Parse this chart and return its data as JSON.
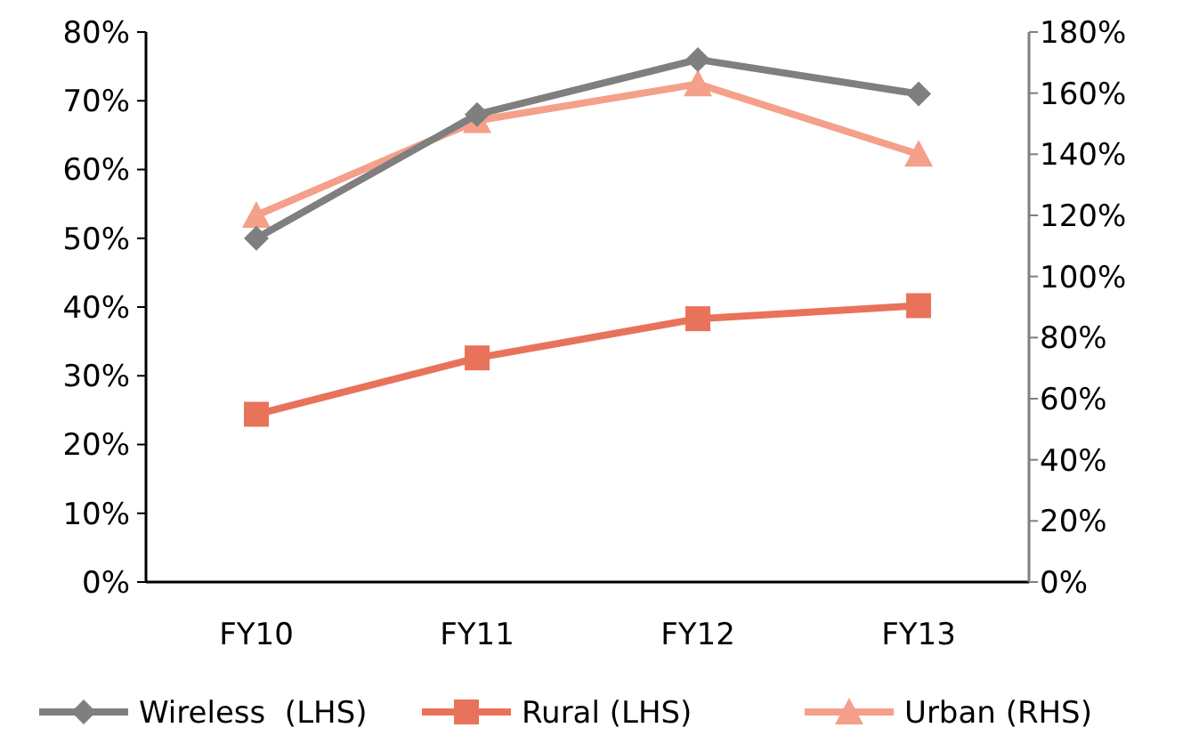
{
  "chart_data": {
    "type": "line",
    "categories": [
      "FY10",
      "FY11",
      "FY12",
      "FY13"
    ],
    "series": [
      {
        "name": "Wireless  (LHS)",
        "color": "#7f7f7f",
        "marker": "diamond",
        "values": [
          50,
          68,
          76,
          71
        ]
      },
      {
        "name": "Rural (LHS)",
        "color": "#e8735a",
        "marker": "square",
        "values": [
          24.4,
          32.6,
          38.3,
          40.2
        ]
      },
      {
        "name": "Urban (RHS)",
        "color": "#f4a08a",
        "marker": "triangle",
        "axis": "y2",
        "values": [
          120,
          151,
          163,
          140
        ]
      }
    ],
    "ylim": [
      0,
      80
    ],
    "yticks": [
      {
        "value": 0,
        "label": "0%"
      },
      {
        "value": 10,
        "label": "10%"
      },
      {
        "value": 20,
        "label": "20%"
      },
      {
        "value": 30,
        "label": "30%"
      },
      {
        "value": 40,
        "label": "40%"
      },
      {
        "value": 50,
        "label": "50%"
      },
      {
        "value": 60,
        "label": "60%"
      },
      {
        "value": 70,
        "label": "70%"
      },
      {
        "value": 80,
        "label": "80%"
      }
    ],
    "y2lim": [
      0,
      180
    ],
    "y2ticks": [
      {
        "value": 0,
        "label": "0%"
      },
      {
        "value": 20,
        "label": "20%"
      },
      {
        "value": 40,
        "label": "40%"
      },
      {
        "value": 60,
        "label": "60%"
      },
      {
        "value": 80,
        "label": "80%"
      },
      {
        "value": 100,
        "label": "100%"
      },
      {
        "value": 120,
        "label": "120%"
      },
      {
        "value": 140,
        "label": "140%"
      },
      {
        "value": 160,
        "label": "160%"
      },
      {
        "value": 180,
        "label": "180%"
      }
    ],
    "grid": false,
    "legend": "bottom",
    "line_style": "solid"
  }
}
